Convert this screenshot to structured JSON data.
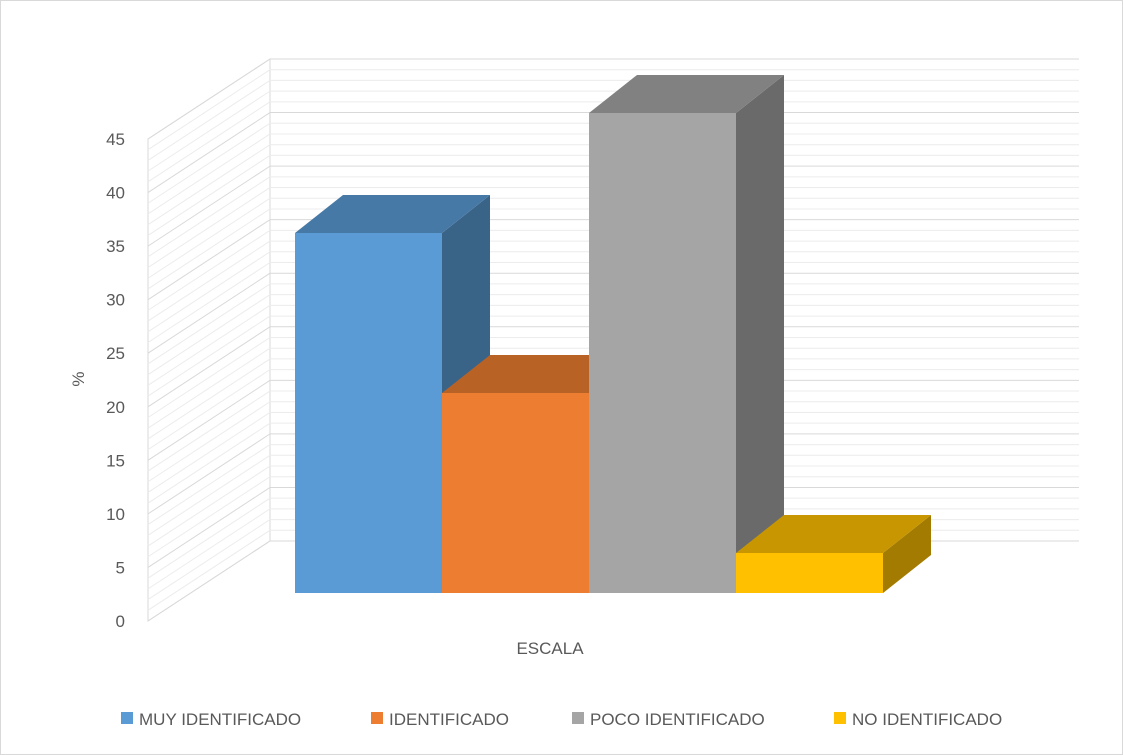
{
  "chart_data": {
    "type": "bar",
    "variant": "3d-column",
    "title": "",
    "xlabel": "ESCALA",
    "ylabel": "%",
    "ylim": [
      0,
      45
    ],
    "yticks": [
      0,
      5,
      10,
      15,
      20,
      25,
      30,
      35,
      40,
      45
    ],
    "grid": true,
    "legend_position": "bottom",
    "series": [
      {
        "name": "MUY IDENTIFICADO",
        "value": 33.3,
        "color": "#5b9bd5"
      },
      {
        "name": "IDENTIFICADO",
        "value": 18.5,
        "color": "#ed7d31"
      },
      {
        "name": "POCO IDENTIFICADO",
        "value": 44.4,
        "color": "#a5a5a5"
      },
      {
        "name": "NO IDENTIFICADO",
        "value": 3.7,
        "color": "#ffc000"
      }
    ]
  }
}
